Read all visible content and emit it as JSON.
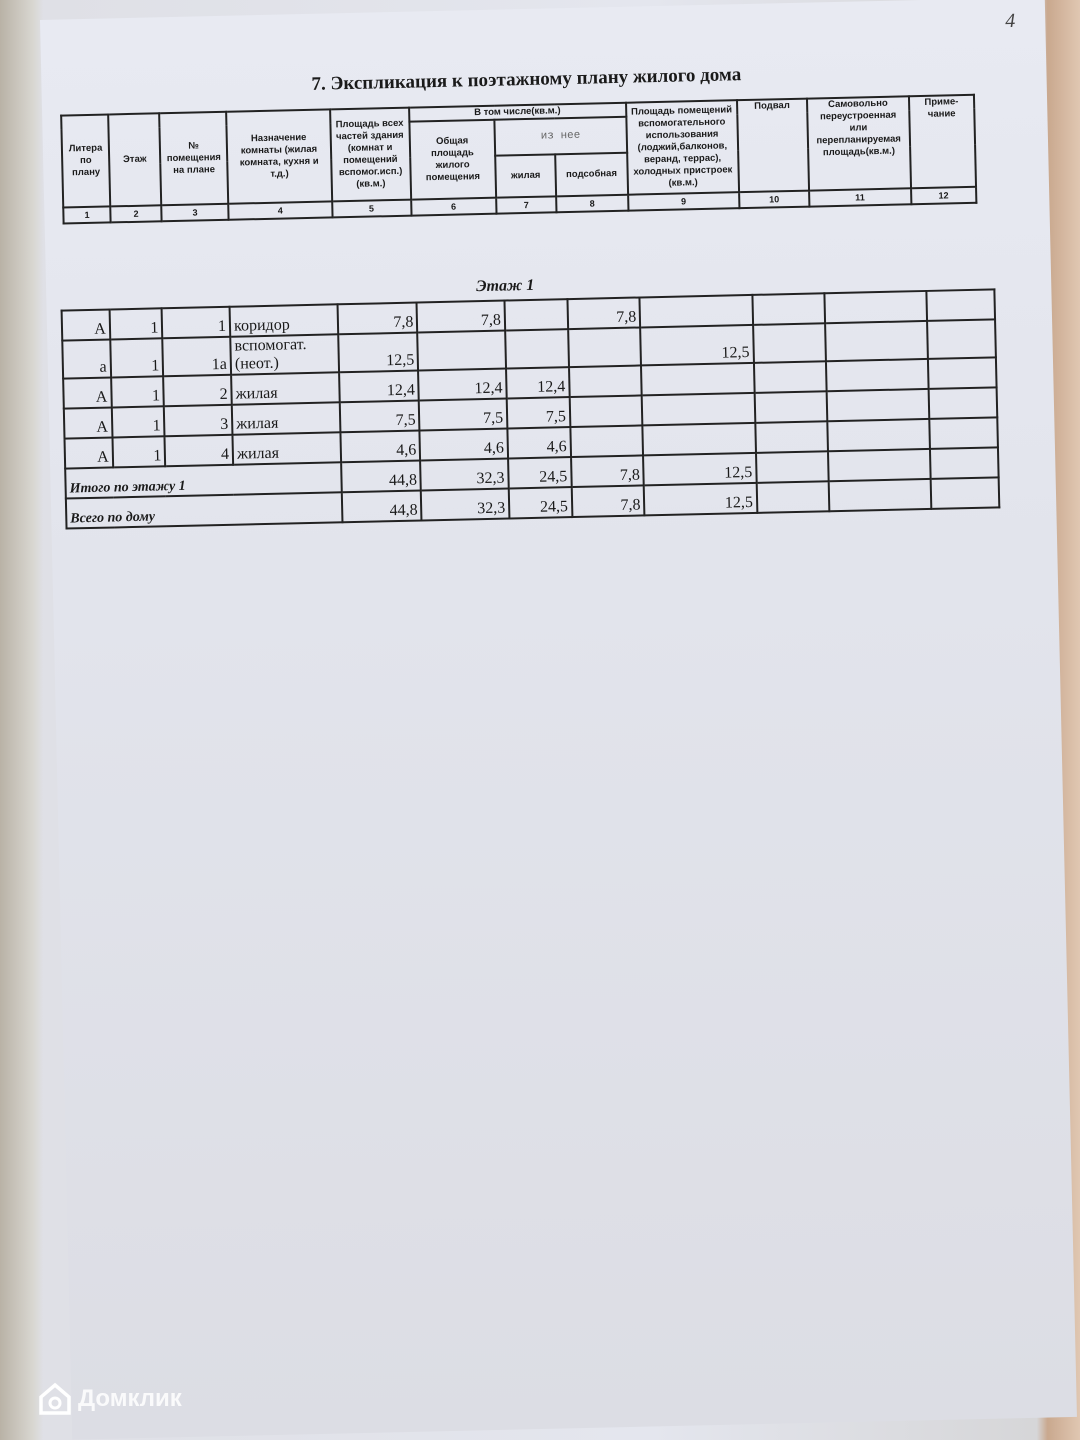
{
  "page_number": "4",
  "title": "7. Экспликация к поэтажному плану жилого дома",
  "header": {
    "c1": "Литера по плану",
    "c2": "Этаж",
    "c3": "№ помещения на плане",
    "c4": "Назначение комнаты (жилая комната, кухня и т.д.)",
    "c5": "Площадь всех частей здания (комнат и помещений вспомог.исп.) (кв.м.)",
    "group": "В том числе(кв.м.)",
    "c6": "Общая площадь жилого помещения",
    "sub_group": "из нее",
    "c7": "жилая",
    "c8": "подсобная",
    "c9": "Площадь помещений вспомогательного использования (лоджий,балконов, веранд, террас), холодных пристроек (кв.м.)",
    "c10": "Подвал",
    "c11": "Самовольно переустроенная или перепланируемая площадь(кв.м.)",
    "c12": "Приме-чание",
    "numbers": [
      "1",
      "2",
      "3",
      "4",
      "5",
      "6",
      "7",
      "8",
      "9",
      "10",
      "11",
      "12"
    ]
  },
  "floor_label": "Этаж 1",
  "rows": [
    [
      "А",
      "1",
      "1",
      "коридор",
      "7,8",
      "7,8",
      "",
      "7,8",
      "",
      "",
      "",
      ""
    ],
    [
      "а",
      "1",
      "1а",
      "вспомогат.(неот.)",
      "12,5",
      "",
      "",
      "",
      "12,5",
      "",
      "",
      ""
    ],
    [
      "А",
      "1",
      "2",
      "жилая",
      "12,4",
      "12,4",
      "12,4",
      "",
      "",
      "",
      "",
      ""
    ],
    [
      "А",
      "1",
      "3",
      "жилая",
      "7,5",
      "7,5",
      "7,5",
      "",
      "",
      "",
      "",
      ""
    ],
    [
      "А",
      "1",
      "4",
      "жилая",
      "4,6",
      "4,6",
      "4,6",
      "",
      "",
      "",
      "",
      ""
    ]
  ],
  "totals": [
    {
      "label": "Итого по этажу 1",
      "values": [
        "44,8",
        "32,3",
        "24,5",
        "7,8",
        "12,5",
        "",
        "",
        ""
      ]
    },
    {
      "label": "Всего по дому",
      "values": [
        "44,8",
        "32,3",
        "24,5",
        "7,8",
        "12,5",
        "",
        "",
        ""
      ]
    }
  ],
  "watermark": "Домклик"
}
